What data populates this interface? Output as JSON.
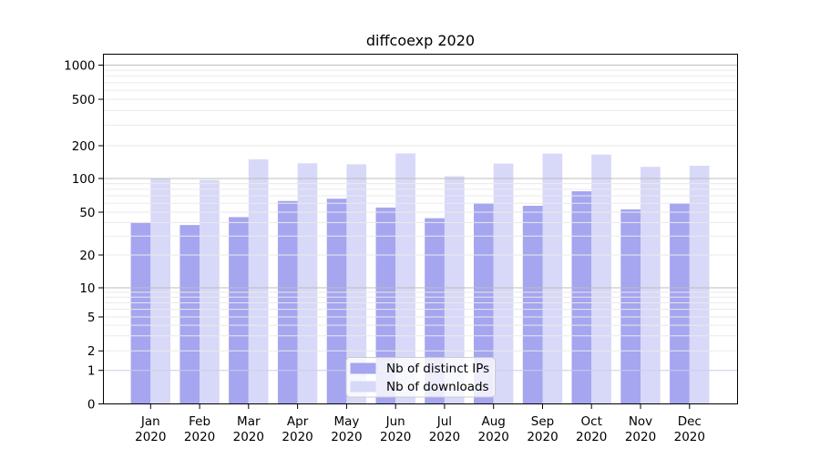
{
  "title": "diffcoexp 2020",
  "legend": {
    "ips_label": "Nb of distinct IPs",
    "downloads_label": "Nb of downloads"
  },
  "colors": {
    "ips_bar": "#a5a5f0",
    "downloads_bar": "#d8d8f8",
    "major_grid": "#bdbdbd",
    "minor_grid": "#eaeaea",
    "unit_grid": "#ccccec",
    "axis": "#000000",
    "legend_border": "#cccccc"
  },
  "chart_data": {
    "type": "bar",
    "title": "diffcoexp 2020",
    "yscale": "symlog",
    "ylim": [
      0,
      1000
    ],
    "y_ticks": [
      0,
      1,
      2,
      5,
      10,
      20,
      50,
      100,
      200,
      500,
      1000
    ],
    "grid": true,
    "legend_position": "bottom-center",
    "categories": [
      "Jan",
      "Feb",
      "Mar",
      "Apr",
      "May",
      "Jun",
      "Jul",
      "Aug",
      "Sep",
      "Oct",
      "Nov",
      "Dec"
    ],
    "year_label": "2020",
    "series": [
      {
        "name": "Nb of distinct IPs",
        "color": "#a5a5f0",
        "values": [
          40,
          38,
          45,
          63,
          66,
          55,
          44,
          60,
          57,
          77,
          53,
          60
        ]
      },
      {
        "name": "Nb of downloads",
        "color": "#d8d8f8",
        "values": [
          100,
          97,
          150,
          138,
          135,
          170,
          105,
          137,
          169,
          166,
          128,
          131
        ]
      }
    ]
  }
}
